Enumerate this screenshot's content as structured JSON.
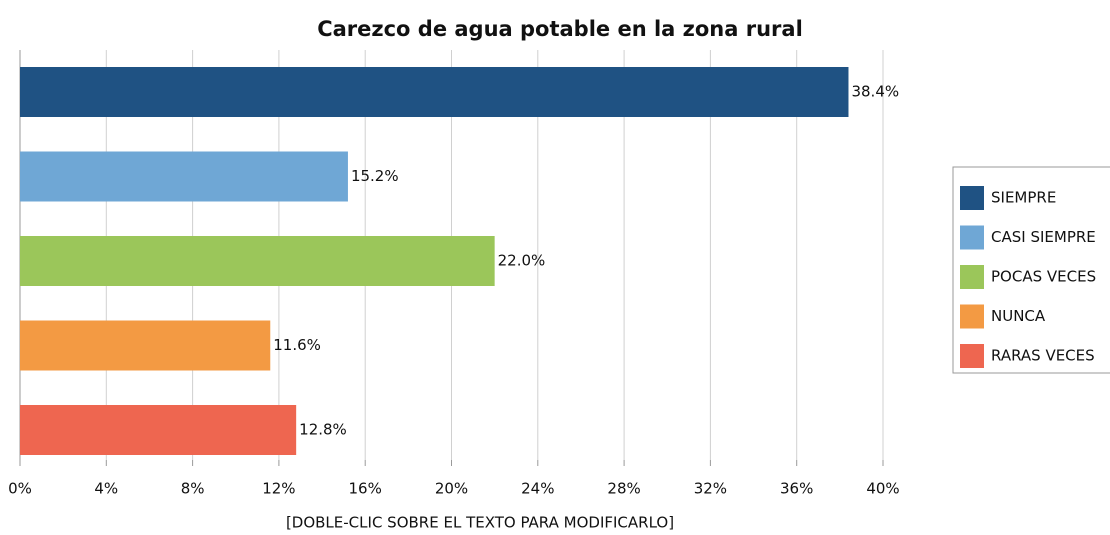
{
  "chart_data": {
    "type": "hbar",
    "title": "Carezco de agua potable en la zona rural",
    "x_label": "[DOBLE-CLIC SOBRE EL TEXTO PARA MODIFICARLO]",
    "categories": [
      "SIEMPRE",
      "CASI SIEMPRE",
      "POCAS VECES",
      "NUNCA",
      "RARAS VECES"
    ],
    "values": [
      38.4,
      15.2,
      22.0,
      11.6,
      12.8
    ],
    "value_labels": [
      "38.4%",
      "15.2%",
      "22.0%",
      "11.6%",
      "12.8%"
    ],
    "colors": [
      "#1f5283",
      "#6fa7d5",
      "#9bc65a",
      "#f39a43",
      "#ee6650"
    ],
    "xlim": [
      0,
      40
    ],
    "xticks": [
      {
        "value": 0,
        "label": "0%"
      },
      {
        "value": 4,
        "label": "4%"
      },
      {
        "value": 8,
        "label": "8%"
      },
      {
        "value": 12,
        "label": "12%"
      },
      {
        "value": 16,
        "label": "16%"
      },
      {
        "value": 20,
        "label": "20%"
      },
      {
        "value": 24,
        "label": "24%"
      },
      {
        "value": 28,
        "label": "28%"
      },
      {
        "value": 32,
        "label": "32%"
      },
      {
        "value": 36,
        "label": "36%"
      },
      {
        "value": 40,
        "label": "40%"
      }
    ],
    "grid": true,
    "legend": "right"
  }
}
